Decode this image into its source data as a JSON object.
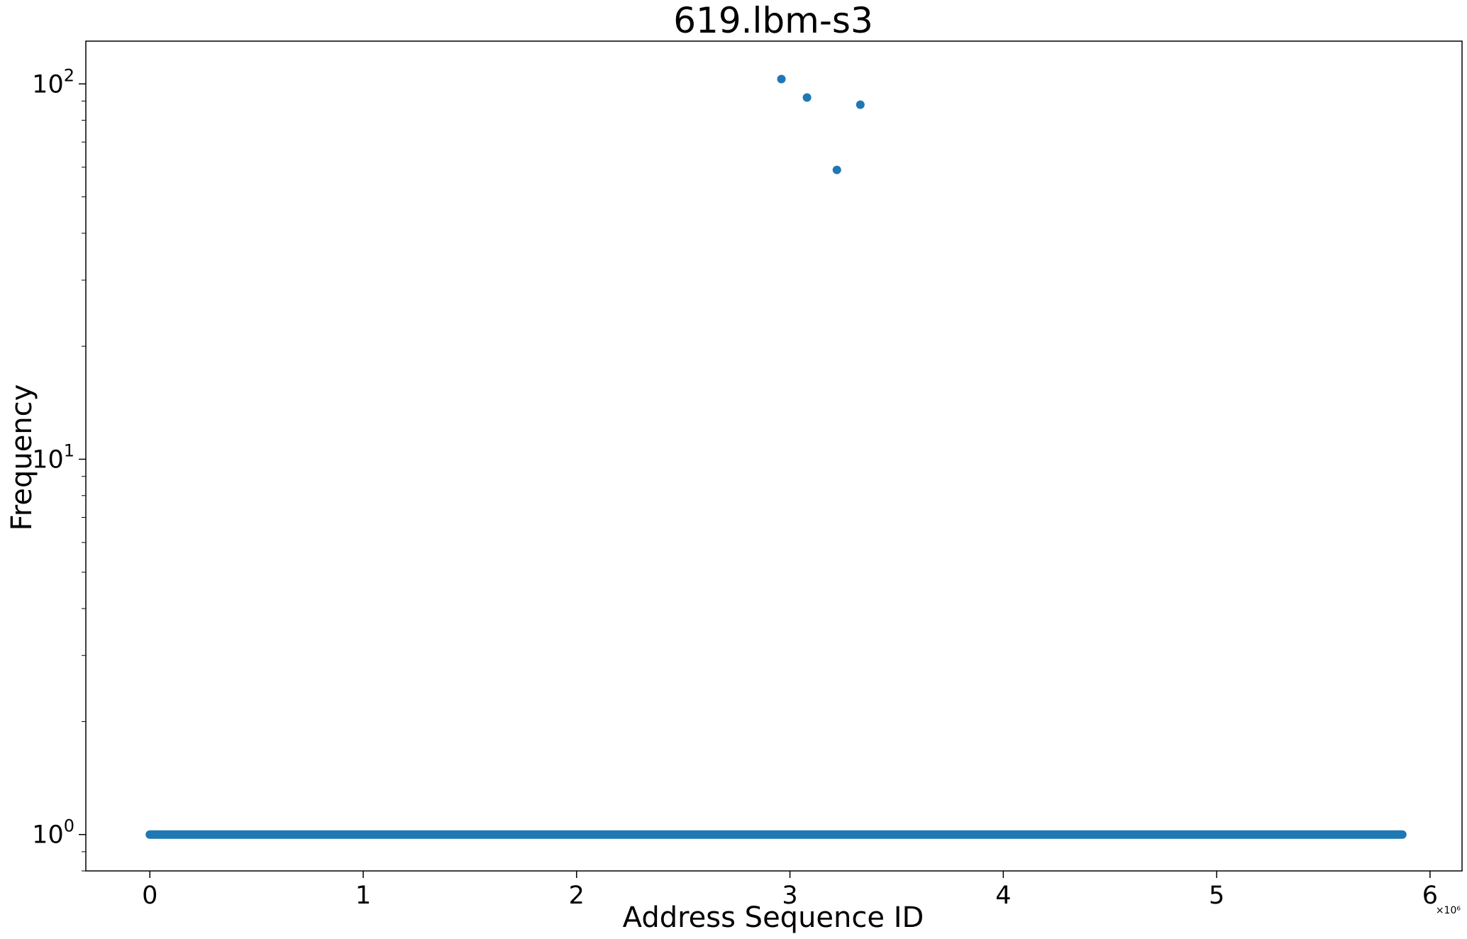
{
  "chart_data": {
    "type": "scatter",
    "title": "619.lbm-s3",
    "xlabel": "Address Sequence ID",
    "ylabel": "Frequency",
    "x_offset_label": "×10⁶",
    "xlim": [
      -0.3,
      6.15
    ],
    "ylim": [
      0.8,
      130
    ],
    "x_scale": "linear",
    "y_scale": "log",
    "grid": false,
    "legend": "none",
    "x_ticks": [
      {
        "value": 0,
        "label": "0"
      },
      {
        "value": 1,
        "label": "1"
      },
      {
        "value": 2,
        "label": "2"
      },
      {
        "value": 3,
        "label": "3"
      },
      {
        "value": 4,
        "label": "4"
      },
      {
        "value": 5,
        "label": "5"
      },
      {
        "value": 6,
        "label": "6"
      }
    ],
    "y_ticks": [
      {
        "value": 1,
        "base": "10",
        "exp": "0"
      },
      {
        "value": 10,
        "base": "10",
        "exp": "1"
      },
      {
        "value": 100,
        "base": "10",
        "exp": "2"
      }
    ],
    "marker_color": "#1f77b4",
    "series": [
      {
        "points": [
          {
            "x": 2.96,
            "y": 103
          },
          {
            "x": 3.08,
            "y": 92
          },
          {
            "x": 3.22,
            "y": 59
          },
          {
            "x": 3.33,
            "y": 88
          }
        ],
        "baseline_run": {
          "x_start": 0.0,
          "x_end": 5.87,
          "y": 1
        }
      }
    ]
  }
}
